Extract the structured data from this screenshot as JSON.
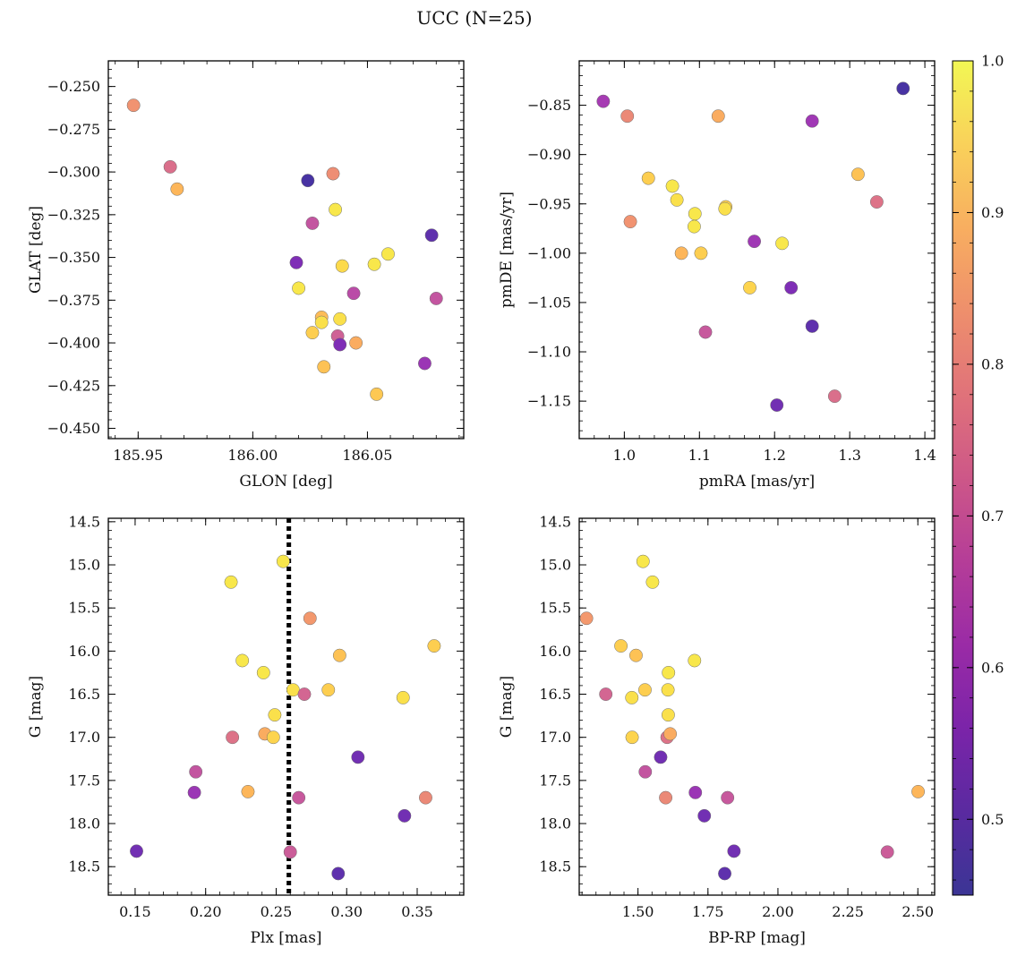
{
  "figure": {
    "title": "UCC (N=25)"
  },
  "colorbar": {
    "colormap": "plasma",
    "min": 0.45,
    "max": 1.0,
    "ticks": [
      0.5,
      0.6,
      0.7,
      0.8,
      0.9,
      1.0
    ],
    "tick_labels": [
      "0.5",
      "0.6",
      "0.7",
      "0.8",
      "0.9",
      "1.0"
    ]
  },
  "chart_data": [
    {
      "type": "scatter",
      "panel": "top-left",
      "title": "",
      "xlabel": "GLON [deg]",
      "ylabel": "GLAT [deg]",
      "xlim": [
        185.937,
        186.092
      ],
      "ylim": [
        -0.456,
        -0.235
      ],
      "x_ticks": [
        185.95,
        186.0,
        186.05
      ],
      "x_tick_labels": [
        "185.95",
        "186.00",
        "186.05"
      ],
      "y_ticks": [
        -0.25,
        -0.275,
        -0.3,
        -0.325,
        -0.35,
        -0.375,
        -0.4,
        -0.425,
        -0.45
      ],
      "y_tick_labels": [
        "−0.250",
        "−0.275",
        "−0.300",
        "−0.325",
        "−0.350",
        "−0.375",
        "−0.400",
        "−0.425",
        "−0.450"
      ],
      "points": [
        {
          "x": 185.948,
          "y": -0.261,
          "c": 0.82
        },
        {
          "x": 185.964,
          "y": -0.297,
          "c": 0.74
        },
        {
          "x": 185.967,
          "y": -0.31,
          "c": 0.89
        },
        {
          "x": 186.024,
          "y": -0.305,
          "c": 0.47
        },
        {
          "x": 186.035,
          "y": -0.301,
          "c": 0.81
        },
        {
          "x": 186.026,
          "y": -0.33,
          "c": 0.68
        },
        {
          "x": 186.036,
          "y": -0.322,
          "c": 0.97
        },
        {
          "x": 186.019,
          "y": -0.353,
          "c": 0.55
        },
        {
          "x": 186.02,
          "y": -0.368,
          "c": 0.97
        },
        {
          "x": 186.039,
          "y": -0.355,
          "c": 0.95
        },
        {
          "x": 186.053,
          "y": -0.354,
          "c": 0.97
        },
        {
          "x": 186.059,
          "y": -0.348,
          "c": 0.97
        },
        {
          "x": 186.078,
          "y": -0.337,
          "c": 0.5
        },
        {
          "x": 186.044,
          "y": -0.371,
          "c": 0.66
        },
        {
          "x": 186.08,
          "y": -0.374,
          "c": 0.68
        },
        {
          "x": 186.03,
          "y": -0.385,
          "c": 0.9
        },
        {
          "x": 186.03,
          "y": -0.388,
          "c": 0.96
        },
        {
          "x": 186.038,
          "y": -0.386,
          "c": 0.96
        },
        {
          "x": 186.026,
          "y": -0.394,
          "c": 0.93
        },
        {
          "x": 186.037,
          "y": -0.396,
          "c": 0.71
        },
        {
          "x": 186.038,
          "y": -0.401,
          "c": 0.55
        },
        {
          "x": 186.045,
          "y": -0.4,
          "c": 0.87
        },
        {
          "x": 186.031,
          "y": -0.414,
          "c": 0.91
        },
        {
          "x": 186.075,
          "y": -0.412,
          "c": 0.6
        },
        {
          "x": 186.054,
          "y": -0.43,
          "c": 0.92
        }
      ]
    },
    {
      "type": "scatter",
      "panel": "top-right",
      "title": "",
      "xlabel": "pmRA [mas/yr]",
      "ylabel": "pmDE [mas/yr]",
      "xlim": [
        0.94,
        1.413
      ],
      "ylim": [
        -1.188,
        -0.805
      ],
      "x_ticks": [
        1.0,
        1.1,
        1.2,
        1.3,
        1.4
      ],
      "x_tick_labels": [
        "1.0",
        "1.1",
        "1.2",
        "1.3",
        "1.4"
      ],
      "y_ticks": [
        -0.85,
        -0.9,
        -0.95,
        -1.0,
        -1.05,
        -1.1,
        -1.15
      ],
      "y_tick_labels": [
        "−0.85",
        "−0.90",
        "−0.95",
        "−1.00",
        "−1.05",
        "−1.10",
        "−1.15"
      ],
      "points": [
        {
          "x": 0.972,
          "y": -0.846,
          "c": 0.62
        },
        {
          "x": 1.004,
          "y": -0.861,
          "c": 0.8
        },
        {
          "x": 1.125,
          "y": -0.861,
          "c": 0.87
        },
        {
          "x": 1.25,
          "y": -0.866,
          "c": 0.61
        },
        {
          "x": 1.371,
          "y": -0.833,
          "c": 0.47
        },
        {
          "x": 1.032,
          "y": -0.924,
          "c": 0.93
        },
        {
          "x": 1.064,
          "y": -0.932,
          "c": 0.97
        },
        {
          "x": 1.07,
          "y": -0.946,
          "c": 0.96
        },
        {
          "x": 1.135,
          "y": -0.953,
          "c": 0.93
        },
        {
          "x": 1.134,
          "y": -0.955,
          "c": 0.96
        },
        {
          "x": 1.094,
          "y": -0.96,
          "c": 0.97
        },
        {
          "x": 1.008,
          "y": -0.968,
          "c": 0.82
        },
        {
          "x": 1.093,
          "y": -0.973,
          "c": 0.97
        },
        {
          "x": 1.311,
          "y": -0.92,
          "c": 0.91
        },
        {
          "x": 1.336,
          "y": -0.948,
          "c": 0.75
        },
        {
          "x": 1.173,
          "y": -0.988,
          "c": 0.61
        },
        {
          "x": 1.21,
          "y": -0.99,
          "c": 0.97
        },
        {
          "x": 1.076,
          "y": -1.0,
          "c": 0.89
        },
        {
          "x": 1.102,
          "y": -1.0,
          "c": 0.93
        },
        {
          "x": 1.167,
          "y": -1.035,
          "c": 0.94
        },
        {
          "x": 1.222,
          "y": -1.035,
          "c": 0.55
        },
        {
          "x": 1.25,
          "y": -1.074,
          "c": 0.5
        },
        {
          "x": 1.108,
          "y": -1.08,
          "c": 0.69
        },
        {
          "x": 1.28,
          "y": -1.145,
          "c": 0.74
        },
        {
          "x": 1.203,
          "y": -1.154,
          "c": 0.53
        }
      ]
    },
    {
      "type": "scatter",
      "panel": "bottom-left",
      "title": "",
      "xlabel": "Plx [mas]",
      "ylabel": "G [mag]",
      "xlim": [
        0.131,
        0.383
      ],
      "ylim": [
        18.83,
        14.46
      ],
      "x_ticks": [
        0.15,
        0.2,
        0.25,
        0.3,
        0.35
      ],
      "x_tick_labels": [
        "0.15",
        "0.20",
        "0.25",
        "0.30",
        "0.35"
      ],
      "y_ticks": [
        14.5,
        15.0,
        15.5,
        16.0,
        16.5,
        17.0,
        17.5,
        18.0,
        18.5
      ],
      "y_tick_labels": [
        "14.5",
        "15.0",
        "15.5",
        "16.0",
        "16.5",
        "17.0",
        "17.5",
        "18.0",
        "18.5"
      ],
      "vertical_line": {
        "x": 0.259,
        "style": "dotted",
        "color": "#000000"
      },
      "points": [
        {
          "x": 0.255,
          "y": 14.96,
          "c": 0.97
        },
        {
          "x": 0.218,
          "y": 15.2,
          "c": 0.97
        },
        {
          "x": 0.274,
          "y": 15.62,
          "c": 0.83
        },
        {
          "x": 0.362,
          "y": 15.94,
          "c": 0.93
        },
        {
          "x": 0.295,
          "y": 16.05,
          "c": 0.91
        },
        {
          "x": 0.226,
          "y": 16.11,
          "c": 0.97
        },
        {
          "x": 0.241,
          "y": 16.25,
          "c": 0.97
        },
        {
          "x": 0.262,
          "y": 16.45,
          "c": 0.96
        },
        {
          "x": 0.287,
          "y": 16.45,
          "c": 0.93
        },
        {
          "x": 0.27,
          "y": 16.5,
          "c": 0.72
        },
        {
          "x": 0.34,
          "y": 16.54,
          "c": 0.96
        },
        {
          "x": 0.249,
          "y": 16.74,
          "c": 0.96
        },
        {
          "x": 0.219,
          "y": 17.0,
          "c": 0.75
        },
        {
          "x": 0.242,
          "y": 16.96,
          "c": 0.87
        },
        {
          "x": 0.248,
          "y": 17.0,
          "c": 0.94
        },
        {
          "x": 0.308,
          "y": 17.23,
          "c": 0.53
        },
        {
          "x": 0.193,
          "y": 17.4,
          "c": 0.68
        },
        {
          "x": 0.192,
          "y": 17.64,
          "c": 0.6
        },
        {
          "x": 0.23,
          "y": 17.63,
          "c": 0.89
        },
        {
          "x": 0.266,
          "y": 17.7,
          "c": 0.69
        },
        {
          "x": 0.356,
          "y": 17.7,
          "c": 0.8
        },
        {
          "x": 0.341,
          "y": 17.91,
          "c": 0.53
        },
        {
          "x": 0.151,
          "y": 18.32,
          "c": 0.53
        },
        {
          "x": 0.26,
          "y": 18.33,
          "c": 0.7
        },
        {
          "x": 0.294,
          "y": 18.58,
          "c": 0.5
        }
      ]
    },
    {
      "type": "scatter",
      "panel": "bottom-right",
      "title": "",
      "xlabel": "BP-RP [mag]",
      "ylabel": "G [mag]",
      "xlim": [
        1.29,
        2.56
      ],
      "ylim": [
        18.83,
        14.46
      ],
      "x_ticks": [
        1.5,
        1.75,
        2.0,
        2.25,
        2.5
      ],
      "x_tick_labels": [
        "1.50",
        "1.75",
        "2.00",
        "2.25",
        "2.50"
      ],
      "y_ticks": [
        14.5,
        15.0,
        15.5,
        16.0,
        16.5,
        17.0,
        17.5,
        18.0,
        18.5
      ],
      "y_tick_labels": [
        "14.5",
        "15.0",
        "15.5",
        "16.0",
        "16.5",
        "17.0",
        "17.5",
        "18.0",
        "18.5"
      ],
      "points": [
        {
          "x": 1.518,
          "y": 14.96,
          "c": 0.97
        },
        {
          "x": 1.552,
          "y": 15.2,
          "c": 0.97
        },
        {
          "x": 1.316,
          "y": 15.62,
          "c": 0.83
        },
        {
          "x": 1.439,
          "y": 15.94,
          "c": 0.93
        },
        {
          "x": 1.493,
          "y": 16.05,
          "c": 0.91
        },
        {
          "x": 1.702,
          "y": 16.11,
          "c": 0.97
        },
        {
          "x": 1.609,
          "y": 16.25,
          "c": 0.97
        },
        {
          "x": 1.607,
          "y": 16.45,
          "c": 0.96
        },
        {
          "x": 1.525,
          "y": 16.45,
          "c": 0.93
        },
        {
          "x": 1.385,
          "y": 16.5,
          "c": 0.72
        },
        {
          "x": 1.478,
          "y": 16.54,
          "c": 0.96
        },
        {
          "x": 1.608,
          "y": 16.74,
          "c": 0.96
        },
        {
          "x": 1.604,
          "y": 17.0,
          "c": 0.75
        },
        {
          "x": 1.615,
          "y": 16.96,
          "c": 0.87
        },
        {
          "x": 1.479,
          "y": 17.0,
          "c": 0.94
        },
        {
          "x": 1.581,
          "y": 17.23,
          "c": 0.53
        },
        {
          "x": 1.526,
          "y": 17.4,
          "c": 0.68
        },
        {
          "x": 1.705,
          "y": 17.64,
          "c": 0.6
        },
        {
          "x": 2.501,
          "y": 17.63,
          "c": 0.89
        },
        {
          "x": 1.82,
          "y": 17.7,
          "c": 0.69
        },
        {
          "x": 1.599,
          "y": 17.7,
          "c": 0.8
        },
        {
          "x": 1.737,
          "y": 17.91,
          "c": 0.53
        },
        {
          "x": 1.843,
          "y": 18.32,
          "c": 0.53
        },
        {
          "x": 2.391,
          "y": 18.33,
          "c": 0.7
        },
        {
          "x": 1.81,
          "y": 18.58,
          "c": 0.5
        }
      ]
    }
  ]
}
